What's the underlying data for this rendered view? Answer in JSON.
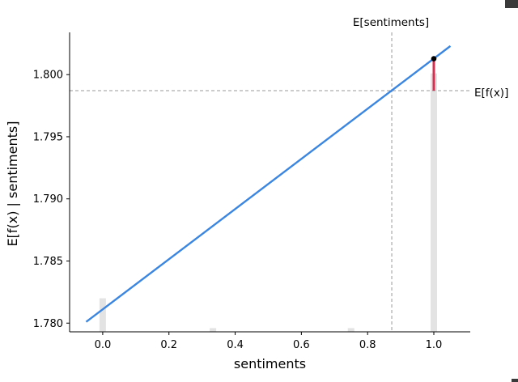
{
  "chart_data": {
    "type": "line",
    "xlabel": "sentiments",
    "ylabel": "E[f(x) | sentiments]",
    "xlim": [
      -0.1,
      1.11
    ],
    "ylim": [
      1.7793,
      1.8034
    ],
    "x_ticks": [
      0.0,
      0.2,
      0.4,
      0.6,
      0.8,
      1.0
    ],
    "x_tick_labels": [
      "0.0",
      "0.2",
      "0.4",
      "0.6",
      "0.8",
      "1.0"
    ],
    "y_ticks": [
      1.78,
      1.785,
      1.79,
      1.795,
      1.8
    ],
    "y_tick_labels": [
      "1.780",
      "1.785",
      "1.790",
      "1.795",
      "1.800"
    ],
    "series": [
      {
        "x": [
          -0.05,
          1.05
        ],
        "y": [
          1.7801,
          1.8023
        ],
        "color": "#3b86e0"
      }
    ],
    "histogram": {
      "color": "#e3e3e3",
      "bars": [
        {
          "x": 0.0,
          "height": 0.0027
        },
        {
          "x": 0.333,
          "height": 0.0003
        },
        {
          "x": 0.75,
          "height": 0.0003
        },
        {
          "x": 1.0,
          "height": 0.0208
        }
      ]
    },
    "expected_x": {
      "label": "E[sentiments]",
      "value": 0.873
    },
    "expected_fx": {
      "label": "E[f(x)]",
      "value": 1.79871
    },
    "highlight_point": {
      "x": 1.0,
      "y": 1.80128,
      "color": "#000000"
    },
    "highlight_segment": {
      "x": 1.0,
      "y0": 1.79871,
      "y1": 1.80128,
      "color": "#d62f52"
    }
  }
}
